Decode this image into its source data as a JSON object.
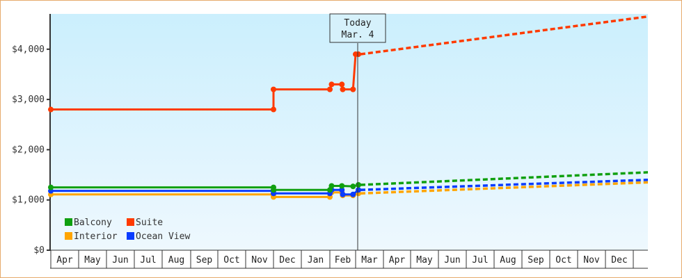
{
  "chart_data": {
    "type": "line",
    "title": "",
    "xlabel": "",
    "ylabel": "",
    "ylim": [
      0,
      4700
    ],
    "y_ticks": [
      "$0",
      "$1,000",
      "$2,000",
      "$3,000",
      "$4,000"
    ],
    "y_tick_values": [
      0,
      1000,
      2000,
      3000,
      4000
    ],
    "x_tick_labels": [
      "Apr",
      "May",
      "Jun",
      "Jul",
      "Aug",
      "Sep",
      "Oct",
      "Nov",
      "Dec",
      "Jan",
      "Feb",
      "Mar",
      "Apr",
      "May",
      "Jun",
      "Jul",
      "Aug",
      "Sep",
      "Oct",
      "Nov",
      "Dec"
    ],
    "annotation": {
      "line1": "Today",
      "line2": "Mar. 4"
    },
    "legend": [
      {
        "name": "Balcony",
        "color": "#10a010"
      },
      {
        "name": "Suite",
        "color": "#ff3a00"
      },
      {
        "name": "Interior",
        "color": "#ffa500"
      },
      {
        "name": "Ocean View",
        "color": "#0a3cff"
      }
    ],
    "legend_position": "lower-left",
    "grid": false,
    "series": [
      {
        "name": "Suite",
        "color": "#ff3a00",
        "historical": [
          {
            "x": "Apr 1",
            "y": 2800
          },
          {
            "x": "Dec 1",
            "y": 2800
          },
          {
            "x": "Dec 1",
            "y": 3200
          },
          {
            "x": "Feb 1",
            "y": 3200
          },
          {
            "x": "Feb 3",
            "y": 3300
          },
          {
            "x": "Feb 15",
            "y": 3300
          },
          {
            "x": "Feb 16",
            "y": 3200
          },
          {
            "x": "Feb 28",
            "y": 3200
          },
          {
            "x": "Mar 1",
            "y": 3900
          },
          {
            "x": "Mar 4",
            "y": 3900
          }
        ],
        "projected": [
          {
            "x": "Mar 4",
            "y": 3900
          },
          {
            "x": "Dec 31",
            "y": 4650
          }
        ]
      },
      {
        "name": "Balcony",
        "color": "#10a010",
        "historical": [
          {
            "x": "Apr 1",
            "y": 1250
          },
          {
            "x": "Dec 1",
            "y": 1250
          },
          {
            "x": "Dec 1",
            "y": 1200
          },
          {
            "x": "Feb 1",
            "y": 1200
          },
          {
            "x": "Feb 3",
            "y": 1280
          },
          {
            "x": "Feb 15",
            "y": 1280
          },
          {
            "x": "Feb 28",
            "y": 1270
          },
          {
            "x": "Mar 4",
            "y": 1300
          }
        ],
        "projected": [
          {
            "x": "Mar 4",
            "y": 1300
          },
          {
            "x": "Dec 31",
            "y": 1550
          }
        ]
      },
      {
        "name": "Ocean View",
        "color": "#0a3cff",
        "historical": [
          {
            "x": "Apr 1",
            "y": 1180
          },
          {
            "x": "Dec 1",
            "y": 1180
          },
          {
            "x": "Dec 1",
            "y": 1130
          },
          {
            "x": "Feb 1",
            "y": 1130
          },
          {
            "x": "Feb 3",
            "y": 1200
          },
          {
            "x": "Feb 15",
            "y": 1200
          },
          {
            "x": "Feb 16",
            "y": 1110
          },
          {
            "x": "Feb 28",
            "y": 1110
          },
          {
            "x": "Mar 4",
            "y": 1200
          }
        ],
        "projected": [
          {
            "x": "Mar 4",
            "y": 1200
          },
          {
            "x": "Dec 31",
            "y": 1400
          }
        ]
      },
      {
        "name": "Interior",
        "color": "#ffa500",
        "historical": [
          {
            "x": "Apr 1",
            "y": 1110
          },
          {
            "x": "Dec 1",
            "y": 1110
          },
          {
            "x": "Dec 1",
            "y": 1060
          },
          {
            "x": "Feb 1",
            "y": 1060
          },
          {
            "x": "Feb 3",
            "y": 1150
          },
          {
            "x": "Feb 15",
            "y": 1150
          },
          {
            "x": "Feb 16",
            "y": 1090
          },
          {
            "x": "Feb 28",
            "y": 1090
          },
          {
            "x": "Mar 4",
            "y": 1130
          }
        ],
        "projected": [
          {
            "x": "Mar 4",
            "y": 1130
          },
          {
            "x": "Dec 31",
            "y": 1350
          }
        ]
      }
    ]
  },
  "colors": {
    "border": "#e6aa6c",
    "plot_top": "#cbeffd",
    "plot_bottom": "#eef8fe",
    "axis": "#333333"
  }
}
